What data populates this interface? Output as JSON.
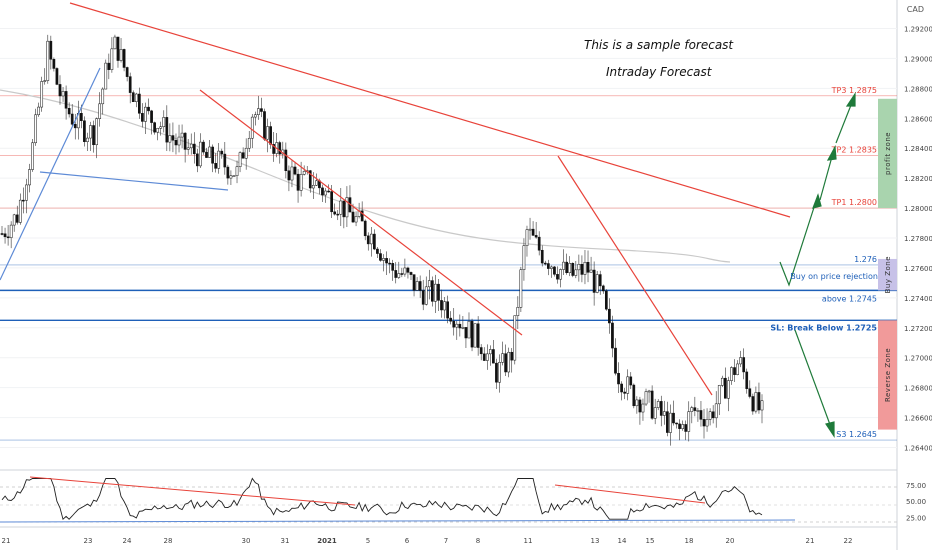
{
  "currency": "CAD",
  "annotations": {
    "line1": "This is a sample forecast",
    "line2": "Intraday Forecast"
  },
  "levels": [
    {
      "id": "tp3",
      "label": "TP3 1.2875",
      "price": 1.2875,
      "color": "#e8433a"
    },
    {
      "id": "tp2",
      "label": "TP2 1.2835",
      "price": 1.2835,
      "color": "#e8433a"
    },
    {
      "id": "tp1",
      "label": "TP1 1.2800",
      "price": 1.28,
      "color": "#e8433a"
    },
    {
      "id": "l1276",
      "label": "1.276",
      "price": 1.2762,
      "color": "#1e5fb8"
    },
    {
      "id": "buy",
      "label": "above 1.2745",
      "price": 1.2745,
      "color": "#1e5fb8"
    },
    {
      "id": "sl",
      "label": "SL: Break Below 1.2725",
      "price": 1.2725,
      "color": "#1e5fb8"
    },
    {
      "id": "s3",
      "label": "S3 1.2645",
      "price": 1.2645,
      "color": "#1e5fb8"
    }
  ],
  "buy_note": "Buy on price rejection",
  "zones": [
    {
      "id": "profit",
      "label": "profit zone",
      "from": 1.28,
      "to": 1.2873,
      "color": "#a9d4ae"
    },
    {
      "id": "buyzone",
      "label": "Buy Zone",
      "from": 1.2745,
      "to": 1.2766,
      "color": "#c7c1e8"
    },
    {
      "id": "reverse",
      "label": "Reverse Zone",
      "from": 1.2652,
      "to": 1.2725,
      "color": "#f19a9a"
    }
  ],
  "chart_data": {
    "type": "candlestick",
    "y_ticks": [
      "1.29200",
      "1.29000",
      "1.28800",
      "1.28600",
      "1.28400",
      "1.28200",
      "1.28000",
      "1.27800",
      "1.27600",
      "1.27400",
      "1.27200",
      "1.27000",
      "1.26800",
      "1.26600",
      "1.26400"
    ],
    "ylim": [
      1.2625,
      1.2935
    ],
    "x_ticks": [
      "21",
      "23",
      "24",
      "28",
      "30",
      "31",
      "2021",
      "5",
      "6",
      "7",
      "8",
      "11",
      "13",
      "14",
      "15",
      "18",
      "20",
      "21",
      "22"
    ],
    "close_path": [
      [
        0,
        1.2783
      ],
      [
        0.02,
        1.2795
      ],
      [
        0.04,
        1.284
      ],
      [
        0.06,
        1.2905
      ],
      [
        0.08,
        1.287
      ],
      [
        0.1,
        1.2855
      ],
      [
        0.12,
        1.285
      ],
      [
        0.14,
        1.2898
      ],
      [
        0.15,
        1.291
      ],
      [
        0.17,
        1.288
      ],
      [
        0.19,
        1.2862
      ],
      [
        0.21,
        1.2855
      ],
      [
        0.23,
        1.2843
      ],
      [
        0.25,
        1.2838
      ],
      [
        0.27,
        1.2833
      ],
      [
        0.29,
        1.283
      ],
      [
        0.31,
        1.2823
      ],
      [
        0.33,
        1.2865
      ],
      [
        0.35,
        1.285
      ],
      [
        0.37,
        1.283
      ],
      [
        0.39,
        1.2818
      ],
      [
        0.41,
        1.2818
      ],
      [
        0.43,
        1.2808
      ],
      [
        0.45,
        1.28
      ],
      [
        0.47,
        1.279
      ],
      [
        0.49,
        1.278
      ],
      [
        0.51,
        1.276
      ],
      [
        0.53,
        1.2755
      ],
      [
        0.55,
        1.2745
      ],
      [
        0.57,
        1.2742
      ],
      [
        0.59,
        1.2732
      ],
      [
        0.61,
        1.272
      ],
      [
        0.63,
        1.271
      ],
      [
        0.65,
        1.269
      ],
      [
        0.67,
        1.27
      ],
      [
        0.69,
        1.2785
      ],
      [
        0.71,
        1.277
      ],
      [
        0.73,
        1.276
      ],
      [
        0.75,
        1.2755
      ],
      [
        0.77,
        1.276
      ],
      [
        0.79,
        1.274
      ],
      [
        0.81,
        1.269
      ],
      [
        0.83,
        1.2675
      ],
      [
        0.85,
        1.267
      ],
      [
        0.87,
        1.266
      ],
      [
        0.89,
        1.265
      ],
      [
        0.91,
        1.2665
      ],
      [
        0.93,
        1.266
      ],
      [
        0.95,
        1.268
      ],
      [
        0.97,
        1.2698
      ],
      [
        0.99,
        1.267
      ],
      [
        1.01,
        1.2655
      ]
    ],
    "rsi_ticks": [
      "75.00",
      "50.00",
      "25.00"
    ],
    "rsi_ylim": [
      10,
      95
    ]
  }
}
